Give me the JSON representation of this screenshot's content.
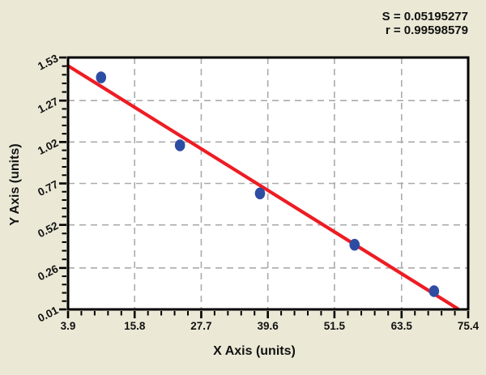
{
  "figure": {
    "background_color": "#ebe9d6",
    "plot_background_color": "#ffffff",
    "frame_color": "#000000",
    "gridline_color": "#ababab"
  },
  "chart_data": {
    "type": "scatter",
    "title": "",
    "xlabel": "X Axis (units)",
    "ylabel": "Y Axis (units)",
    "x_tick_labels": [
      "3.9",
      "15.8",
      "27.7",
      "39.6",
      "51.5",
      "63.5",
      "75.4"
    ],
    "y_tick_labels": [
      "0.01",
      "0.26",
      "0.52",
      "0.77",
      "1.02",
      "1.27",
      "1.53"
    ],
    "xlim": [
      3.9,
      75.4
    ],
    "ylim": [
      0.01,
      1.53
    ],
    "grid": "dashed-at-major-ticks",
    "minor_divisions_per_major": 5,
    "legend": "none",
    "points": {
      "color": "#2d4da3",
      "x": [
        9.8,
        23.9,
        38.2,
        55.1,
        69.3
      ],
      "y": [
        1.41,
        1.0,
        0.71,
        0.4,
        0.12
      ]
    },
    "trend_line": {
      "color": "#ee1c23",
      "x1": 3.9,
      "y1": 1.48,
      "x2": 73.5,
      "y2": 0.015
    },
    "annotations": [
      "S = 0.05195277",
      "r = 0.99598579"
    ]
  }
}
